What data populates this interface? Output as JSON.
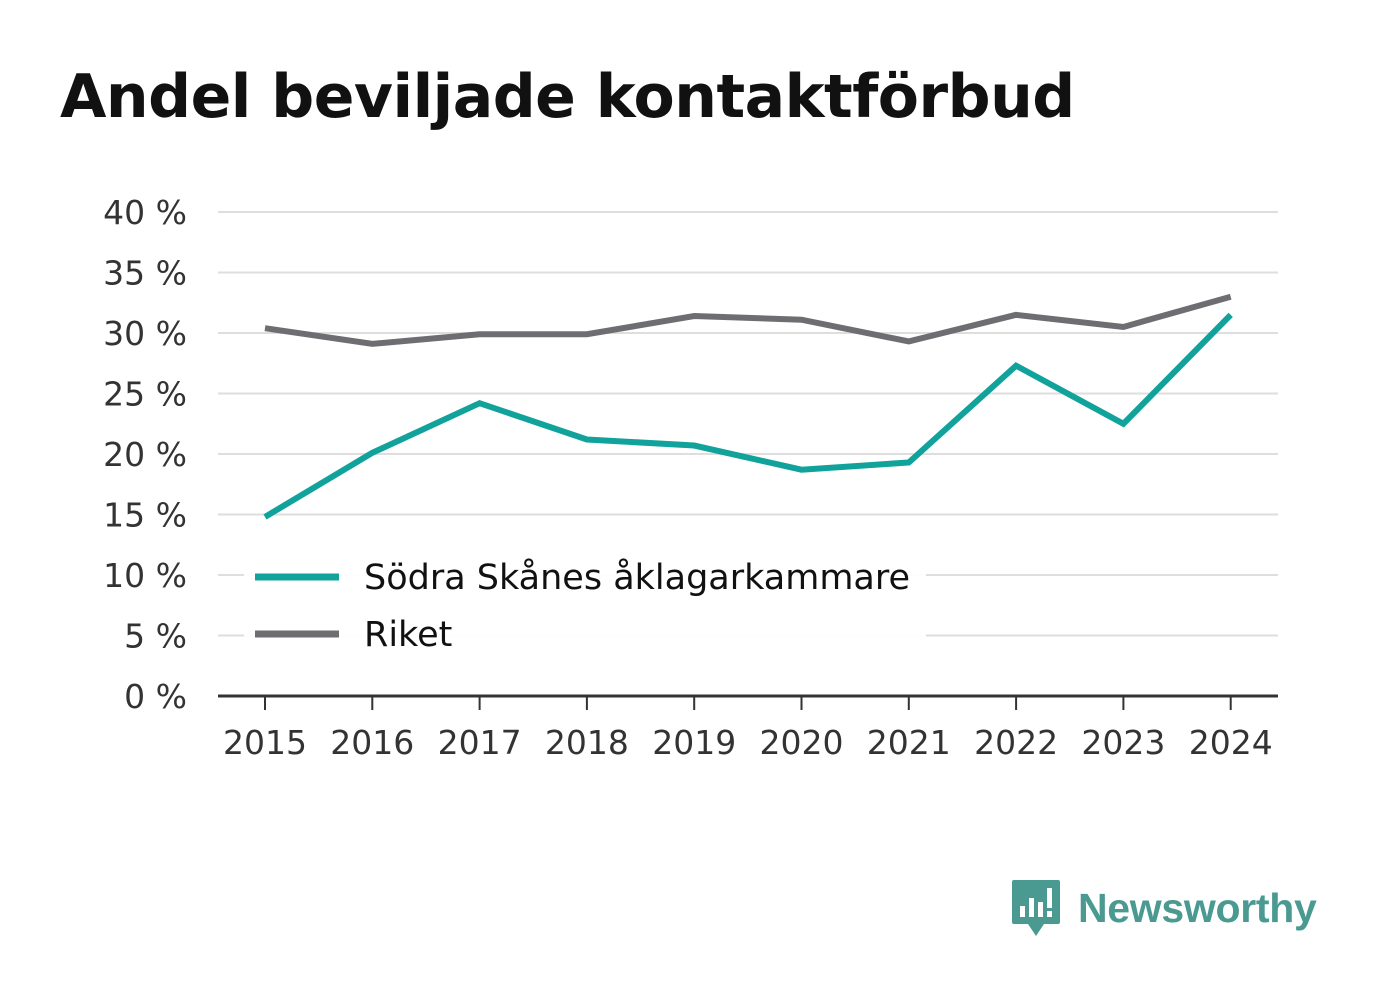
{
  "title": "Andel beviljade kontaktförbud",
  "brand": {
    "name": "Newsworthy",
    "icon": "newsworthy-logo-icon",
    "color": "#4a9a92"
  },
  "chart_data": {
    "type": "line",
    "title": "Andel beviljade kontaktförbud",
    "x": [
      "2015",
      "2016",
      "2017",
      "2018",
      "2019",
      "2020",
      "2021",
      "2022",
      "2023",
      "2024"
    ],
    "yticks": [
      "0 %",
      "5 %",
      "10 %",
      "15 %",
      "20 %",
      "25 %",
      "30 %",
      "35 %",
      "40 %"
    ],
    "ylim": [
      0,
      40
    ],
    "grid": true,
    "legend_position": "lower-left",
    "series": [
      {
        "name": "Södra Skånes åklagarkammare",
        "color": "#11a39b",
        "values": [
          14.8,
          20.1,
          24.2,
          21.2,
          20.7,
          18.7,
          19.3,
          27.3,
          22.5,
          31.5
        ]
      },
      {
        "name": "Riket",
        "color": "#6e6e72",
        "values": [
          30.4,
          29.1,
          29.9,
          29.9,
          31.4,
          31.1,
          29.3,
          31.5,
          30.5,
          33.0
        ]
      }
    ]
  }
}
